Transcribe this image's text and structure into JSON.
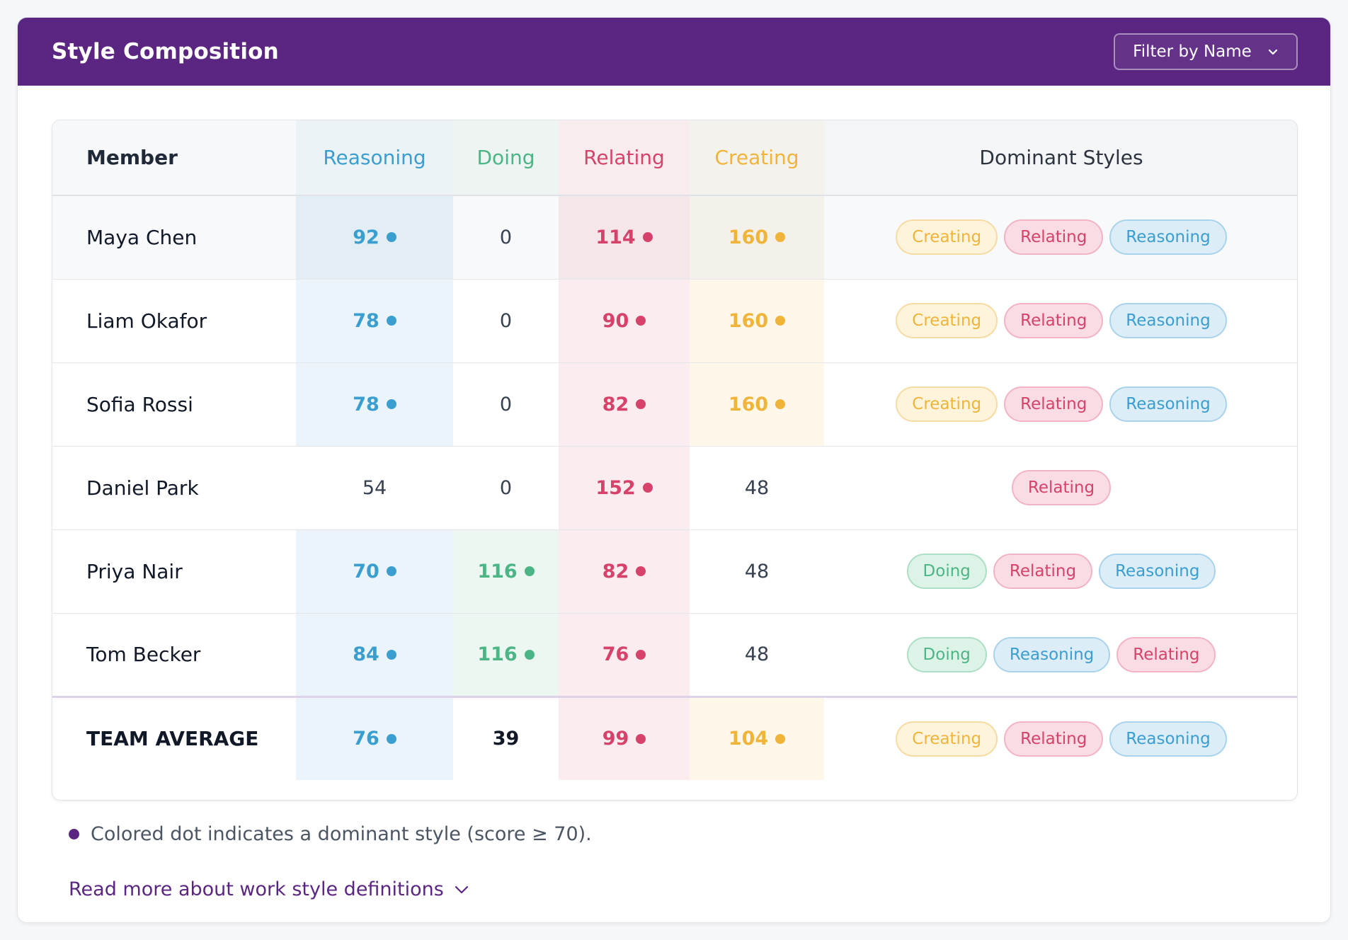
{
  "header": {
    "title": "Style Composition",
    "filter_label": "Filter by Name"
  },
  "columns": {
    "member": "Member",
    "reasoning": "Reasoning",
    "doing": "Doing",
    "relating": "Relating",
    "creating": "Creating",
    "dominant": "Dominant Styles"
  },
  "colors": {
    "header_bg": "#5b2682",
    "reasoning": "#3a9ecf",
    "doing": "#4cb585",
    "relating": "#d6426a",
    "creating": "#f0b43a"
  },
  "rows": [
    {
      "name": "Maya Chen",
      "reasoning": "92",
      "doing": "0",
      "relating": "114",
      "creating": "160",
      "dominant_flags": {
        "reasoning": true,
        "doing": false,
        "relating": true,
        "creating": true
      },
      "dominant": [
        "Creating",
        "Relating",
        "Reasoning"
      ]
    },
    {
      "name": "Liam Okafor",
      "reasoning": "78",
      "doing": "0",
      "relating": "90",
      "creating": "160",
      "dominant_flags": {
        "reasoning": true,
        "doing": false,
        "relating": true,
        "creating": true
      },
      "dominant": [
        "Creating",
        "Relating",
        "Reasoning"
      ]
    },
    {
      "name": "Sofia Rossi",
      "reasoning": "78",
      "doing": "0",
      "relating": "82",
      "creating": "160",
      "dominant_flags": {
        "reasoning": true,
        "doing": false,
        "relating": true,
        "creating": true
      },
      "dominant": [
        "Creating",
        "Relating",
        "Reasoning"
      ]
    },
    {
      "name": "Daniel Park",
      "reasoning": "54",
      "doing": "0",
      "relating": "152",
      "creating": "48",
      "dominant_flags": {
        "reasoning": false,
        "doing": false,
        "relating": true,
        "creating": false
      },
      "dominant": [
        "Relating"
      ]
    },
    {
      "name": "Priya Nair",
      "reasoning": "70",
      "doing": "116",
      "relating": "82",
      "creating": "48",
      "dominant_flags": {
        "reasoning": true,
        "doing": true,
        "relating": true,
        "creating": false
      },
      "dominant": [
        "Doing",
        "Relating",
        "Reasoning"
      ]
    },
    {
      "name": "Tom Becker",
      "reasoning": "84",
      "doing": "116",
      "relating": "76",
      "creating": "48",
      "dominant_flags": {
        "reasoning": true,
        "doing": true,
        "relating": true,
        "creating": false
      },
      "dominant": [
        "Doing",
        "Reasoning",
        "Relating"
      ]
    }
  ],
  "average": {
    "name": "TEAM AVERAGE",
    "reasoning": "76",
    "doing": "39",
    "relating": "99",
    "creating": "104",
    "dominant_flags": {
      "reasoning": true,
      "doing": false,
      "relating": true,
      "creating": true
    },
    "dominant": [
      "Creating",
      "Relating",
      "Reasoning"
    ]
  },
  "legend_text": "Colored dot indicates a dominant style (score ≥ 70).",
  "read_more": "Read more about work style definitions"
}
